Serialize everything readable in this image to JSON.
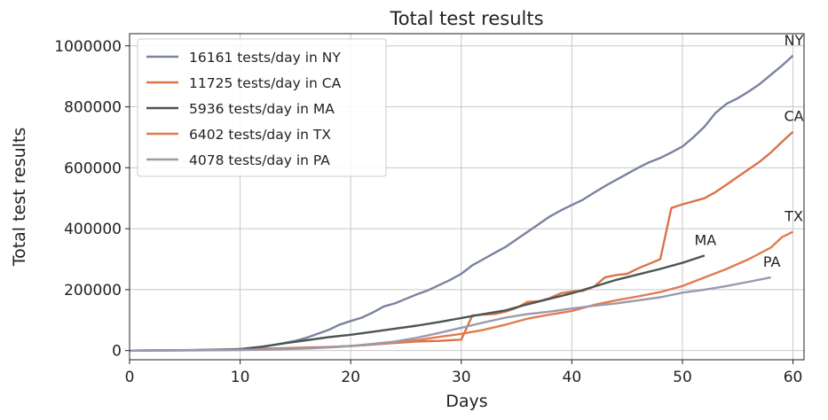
{
  "chart_data": {
    "type": "line",
    "title": "Total test results",
    "xlabel": "Days",
    "ylabel": "Total test results",
    "xlim": [
      0,
      61
    ],
    "ylim": [
      -30000,
      1040000
    ],
    "xticks": [
      0,
      10,
      20,
      30,
      40,
      50,
      60
    ],
    "yticks": [
      0,
      200000,
      400000,
      600000,
      800000,
      1000000
    ],
    "xtick_labels": [
      "0",
      "10",
      "20",
      "30",
      "40",
      "50",
      "60"
    ],
    "ytick_labels": [
      "0",
      "200000",
      "400000",
      "600000",
      "800000",
      "1000000"
    ],
    "grid": true,
    "legend_position": "top-left",
    "series": [
      {
        "name": "16161 tests/day in NY",
        "end_label": "NY",
        "color": "#7b82a0",
        "x": [
          0,
          2,
          4,
          6,
          8,
          10,
          11,
          12,
          13,
          14,
          15,
          16,
          17,
          18,
          19,
          20,
          21,
          22,
          23,
          24,
          25,
          26,
          27,
          28,
          29,
          30,
          31,
          32,
          33,
          34,
          35,
          36,
          37,
          38,
          39,
          40,
          41,
          42,
          43,
          44,
          45,
          46,
          47,
          48,
          49,
          50,
          51,
          52,
          53,
          54,
          55,
          56,
          57,
          58,
          59,
          60
        ],
        "y": [
          0,
          500,
          1000,
          2000,
          3500,
          5000,
          7000,
          12000,
          18000,
          25000,
          32000,
          42000,
          55000,
          68000,
          85000,
          97000,
          108000,
          125000,
          145000,
          155000,
          170000,
          185000,
          198000,
          215000,
          232000,
          252000,
          280000,
          300000,
          320000,
          340000,
          365000,
          390000,
          415000,
          440000,
          460000,
          478000,
          495000,
          518000,
          540000,
          560000,
          580000,
          600000,
          618000,
          632000,
          650000,
          670000,
          700000,
          735000,
          780000,
          810000,
          828000,
          850000,
          875000,
          905000,
          935000,
          968000
        ]
      },
      {
        "name": "11725 tests/day in CA",
        "end_label": "CA",
        "color": "#d9744a",
        "x": [
          0,
          5,
          10,
          12,
          14,
          16,
          18,
          20,
          22,
          24,
          26,
          28,
          29,
          30,
          31,
          32,
          33,
          34,
          35,
          36,
          37,
          38,
          39,
          40,
          41,
          42,
          43,
          44,
          45,
          46,
          47,
          48,
          49,
          50,
          51,
          52,
          53,
          54,
          55,
          56,
          57,
          58,
          59,
          60
        ],
        "y": [
          0,
          1000,
          3000,
          6000,
          8000,
          10000,
          12000,
          15000,
          20000,
          25000,
          30000,
          32000,
          34000,
          36000,
          115000,
          118000,
          120000,
          128000,
          140000,
          160000,
          162000,
          172000,
          188000,
          194000,
          196000,
          210000,
          240000,
          248000,
          252000,
          270000,
          285000,
          300000,
          468000,
          480000,
          490000,
          500000,
          520000,
          545000,
          570000,
          595000,
          620000,
          650000,
          685000,
          718000
        ]
      },
      {
        "name": "5936 tests/day in MA",
        "end_label": "MA",
        "color": "#4a5654",
        "x": [
          0,
          5,
          8,
          10,
          12,
          14,
          16,
          18,
          20,
          22,
          24,
          26,
          28,
          30,
          32,
          34,
          36,
          38,
          40,
          42,
          44,
          46,
          48,
          50,
          52
        ],
        "y": [
          0,
          1000,
          2500,
          5000,
          13000,
          24000,
          34000,
          44000,
          52000,
          62000,
          72000,
          82000,
          94000,
          107000,
          120000,
          132000,
          152000,
          170000,
          188000,
          210000,
          232000,
          250000,
          268000,
          288000,
          312000
        ]
      },
      {
        "name": "6402 tests/day in TX",
        "end_label": "TX",
        "color": "#e27b4e",
        "x": [
          0,
          5,
          10,
          12,
          14,
          16,
          18,
          20,
          22,
          24,
          26,
          28,
          30,
          32,
          34,
          36,
          38,
          40,
          42,
          44,
          46,
          48,
          50,
          52,
          54,
          56,
          58,
          59,
          60
        ],
        "y": [
          0,
          1000,
          2500,
          4000,
          6000,
          8000,
          11000,
          15000,
          20000,
          26000,
          34000,
          45000,
          55000,
          68000,
          85000,
          105000,
          118000,
          130000,
          150000,
          165000,
          178000,
          192000,
          212000,
          240000,
          268000,
          300000,
          338000,
          372000,
          390000
        ]
      },
      {
        "name": "4078 tests/day in PA",
        "end_label": "PA",
        "color": "#9a9aae",
        "x": [
          0,
          5,
          10,
          12,
          14,
          16,
          18,
          20,
          22,
          24,
          26,
          28,
          30,
          32,
          34,
          36,
          38,
          40,
          42,
          44,
          46,
          48,
          50,
          52,
          54,
          56,
          58
        ],
        "y": [
          0,
          500,
          2000,
          3500,
          5000,
          7000,
          10000,
          15000,
          22000,
          30000,
          42000,
          58000,
          75000,
          92000,
          108000,
          120000,
          128000,
          138000,
          147000,
          155000,
          165000,
          175000,
          190000,
          200000,
          212000,
          226000,
          240000
        ]
      }
    ]
  }
}
